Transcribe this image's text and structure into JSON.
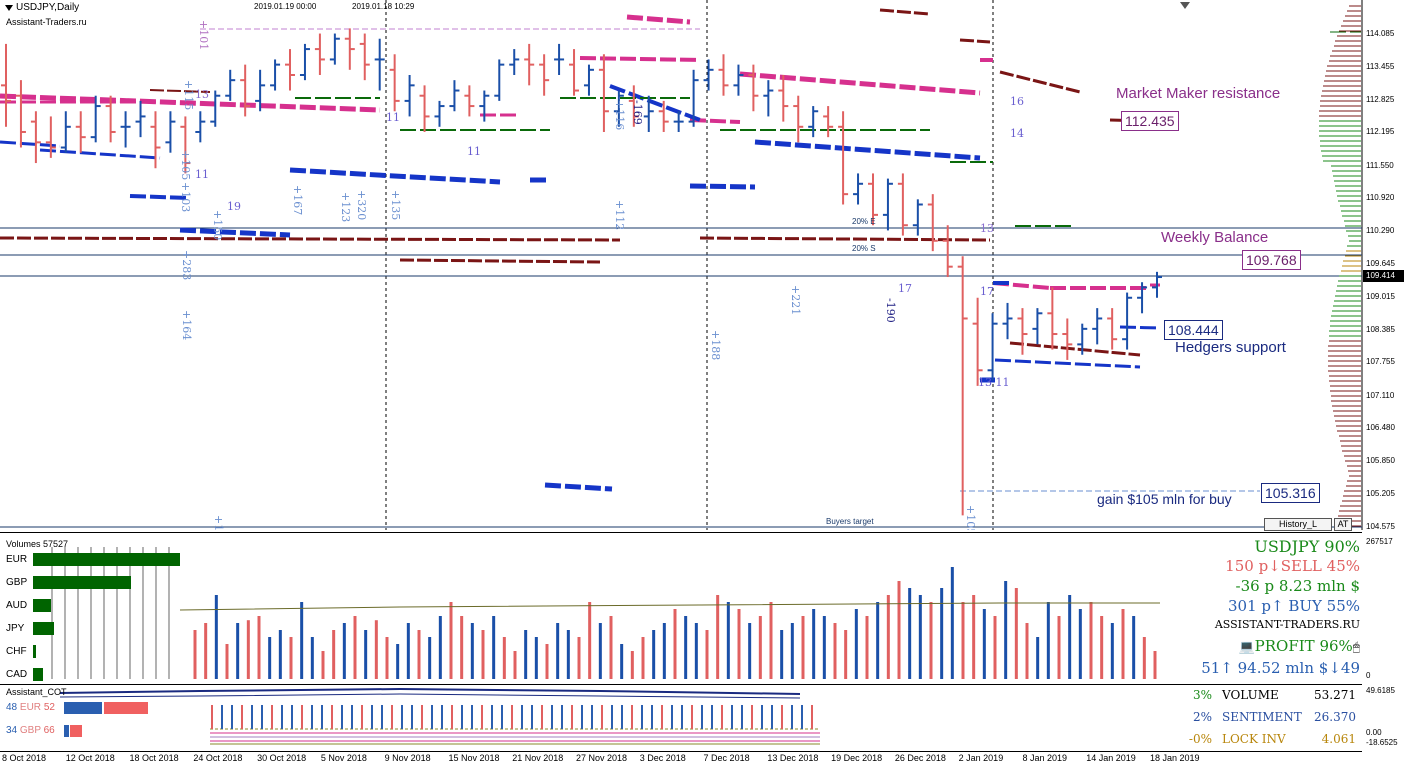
{
  "chart": {
    "symbol_title": "USDJPY,Daily",
    "site": "Assistant-Traders.ru",
    "timestamps": [
      "2019.01.19 00:00",
      "2019.01.18 10:29"
    ],
    "market_maker_label": "Market Maker resistance",
    "market_maker_price": "112.435",
    "weekly_balance_label": "Weekly Balance",
    "weekly_balance_price": "109.768",
    "current_price": "109.414",
    "hedgers_price": "108.444",
    "hedgers_label": "Hedgers support",
    "gain_label": "gain $105 mln for buy",
    "gain_price": "105.316",
    "buyers_target": "Buyers target",
    "pct_e": "20% E",
    "pct_s": "20% S",
    "history_button": "History_L",
    "at_button": "AT",
    "annotations": [
      {
        "text": "+101",
        "color": "#b070c0"
      },
      {
        "text": "+115",
        "color": "#6a8fd0"
      },
      {
        "text": "13",
        "color": "#8a6fd0"
      },
      {
        "text": "+105",
        "color": "#6a8fd0"
      },
      {
        "text": "+103",
        "color": "#6a8fd0"
      },
      {
        "text": "11",
        "color": "#6a5fd0"
      },
      {
        "text": "19",
        "color": "#6a5fd0"
      },
      {
        "text": "+150",
        "color": "#6a8fd0"
      },
      {
        "text": "+283",
        "color": "#6a8fd0"
      },
      {
        "text": "+164",
        "color": "#6a8fd0"
      },
      {
        "text": "+18",
        "color": "#6a8fd0"
      },
      {
        "text": "+167",
        "color": "#6a8fd0"
      },
      {
        "text": "+123",
        "color": "#6a8fd0"
      },
      {
        "text": "+320",
        "color": "#6a8fd0"
      },
      {
        "text": "11",
        "color": "#6a5fd0"
      },
      {
        "text": "+135",
        "color": "#6a8fd0"
      },
      {
        "text": "11",
        "color": "#6a5fd0"
      },
      {
        "text": "+116",
        "color": "#6a8fd0"
      },
      {
        "text": "-169",
        "color": "#1a1a80"
      },
      {
        "text": "+112",
        "color": "#6a8fd0"
      },
      {
        "text": "+188",
        "color": "#6a8fd0"
      },
      {
        "text": "+221",
        "color": "#6a8fd0"
      },
      {
        "text": "-190",
        "color": "#1a1a80"
      },
      {
        "text": "17",
        "color": "#6a5fd0"
      },
      {
        "text": "13",
        "color": "#8a6fd0"
      },
      {
        "text": "17",
        "color": "#6a5fd0"
      },
      {
        "text": "13 11",
        "color": "#6a5fd0"
      },
      {
        "text": "+105",
        "color": "#6a8fd0"
      },
      {
        "text": "16",
        "color": "#6a5fd0"
      },
      {
        "text": "14",
        "color": "#6a5fd0"
      }
    ],
    "price_axis": [
      "114.085",
      "113.455",
      "112.825",
      "112.195",
      "111.550",
      "110.920",
      "110.290",
      "109.645",
      "109.015",
      "108.385",
      "107.755",
      "107.110",
      "106.480",
      "105.850",
      "105.205",
      "104.575"
    ]
  },
  "chart_data": {
    "type": "candlestick",
    "symbol": "USDJPY",
    "timeframe": "Daily",
    "dates": [
      "8 Oct 2018",
      "12 Oct 2018",
      "18 Oct 2018",
      "24 Oct 2018",
      "30 Oct 2018",
      "5 Nov 2018",
      "9 Nov 2018",
      "15 Nov 2018",
      "21 Nov 2018",
      "27 Nov 2018",
      "3 Dec 2018",
      "7 Dec 2018",
      "13 Dec 2018",
      "19 Dec 2018",
      "26 Dec 2018",
      "2 Jan 2019",
      "8 Jan 2019",
      "14 Jan 2019",
      "18 Jan 2019"
    ],
    "ylim": [
      104.575,
      114.4
    ],
    "levels": {
      "market_maker_resistance": 112.435,
      "weekly_balance": 109.768,
      "current": 109.414,
      "hedgers_support": 108.444,
      "gain_level": 105.316
    },
    "candles": [
      {
        "o": 113.1,
        "h": 113.9,
        "c": 112.8,
        "l": 112.3
      },
      {
        "o": 112.9,
        "h": 113.2,
        "c": 112.2,
        "l": 111.9
      },
      {
        "o": 112.4,
        "h": 112.6,
        "c": 112.0,
        "l": 111.6
      },
      {
        "o": 112.0,
        "h": 112.5,
        "c": 111.9,
        "l": 111.7
      },
      {
        "o": 111.9,
        "h": 112.6,
        "c": 112.3,
        "l": 111.8
      },
      {
        "o": 112.3,
        "h": 112.6,
        "c": 112.1,
        "l": 111.8
      },
      {
        "o": 112.1,
        "h": 112.9,
        "c": 112.7,
        "l": 112.0
      },
      {
        "o": 112.7,
        "h": 112.9,
        "c": 112.2,
        "l": 112.0
      },
      {
        "o": 112.3,
        "h": 112.6,
        "c": 112.3,
        "l": 111.9
      },
      {
        "o": 112.4,
        "h": 112.8,
        "c": 112.5,
        "l": 112.1
      },
      {
        "o": 112.3,
        "h": 112.6,
        "c": 111.9,
        "l": 111.5
      },
      {
        "o": 112.0,
        "h": 112.6,
        "c": 112.4,
        "l": 111.8
      },
      {
        "o": 112.3,
        "h": 112.5,
        "c": 111.6,
        "l": 111.4
      },
      {
        "o": 112.2,
        "h": 112.6,
        "c": 112.4,
        "l": 112.0
      },
      {
        "o": 112.4,
        "h": 113.0,
        "c": 112.9,
        "l": 112.3
      },
      {
        "o": 112.9,
        "h": 113.4,
        "c": 113.2,
        "l": 112.8
      },
      {
        "o": 113.2,
        "h": 113.5,
        "c": 112.7,
        "l": 112.5
      },
      {
        "o": 112.8,
        "h": 113.4,
        "c": 113.1,
        "l": 112.6
      },
      {
        "o": 113.1,
        "h": 113.6,
        "c": 113.5,
        "l": 113.0
      },
      {
        "o": 113.5,
        "h": 113.8,
        "c": 113.3,
        "l": 113.0
      },
      {
        "o": 113.3,
        "h": 113.9,
        "c": 113.8,
        "l": 113.2
      },
      {
        "o": 113.8,
        "h": 114.1,
        "c": 113.6,
        "l": 113.3
      },
      {
        "o": 113.6,
        "h": 114.1,
        "c": 114.0,
        "l": 113.5
      },
      {
        "o": 114.0,
        "h": 114.2,
        "c": 113.8,
        "l": 113.4
      },
      {
        "o": 113.9,
        "h": 114.1,
        "c": 113.5,
        "l": 113.2
      },
      {
        "o": 113.6,
        "h": 114.0,
        "c": 113.6,
        "l": 113.0
      },
      {
        "o": 113.4,
        "h": 113.7,
        "c": 112.8,
        "l": 112.6
      },
      {
        "o": 112.8,
        "h": 113.3,
        "c": 113.1,
        "l": 112.5
      },
      {
        "o": 112.9,
        "h": 113.1,
        "c": 112.5,
        "l": 112.2
      },
      {
        "o": 112.5,
        "h": 112.8,
        "c": 112.7,
        "l": 112.3
      },
      {
        "o": 112.7,
        "h": 113.2,
        "c": 113.0,
        "l": 112.6
      },
      {
        "o": 112.9,
        "h": 113.1,
        "c": 112.7,
        "l": 112.5
      },
      {
        "o": 112.7,
        "h": 113.0,
        "c": 112.9,
        "l": 112.4
      },
      {
        "o": 112.9,
        "h": 113.6,
        "c": 113.5,
        "l": 112.8
      },
      {
        "o": 113.5,
        "h": 113.8,
        "c": 113.6,
        "l": 113.3
      },
      {
        "o": 113.6,
        "h": 113.9,
        "c": 113.5,
        "l": 113.1
      },
      {
        "o": 113.5,
        "h": 113.7,
        "c": 113.2,
        "l": 112.9
      },
      {
        "o": 113.6,
        "h": 113.9,
        "c": 113.6,
        "l": 113.3
      },
      {
        "o": 113.5,
        "h": 113.8,
        "c": 113.0,
        "l": 112.9
      },
      {
        "o": 113.1,
        "h": 113.5,
        "c": 113.4,
        "l": 112.9
      },
      {
        "o": 113.4,
        "h": 113.7,
        "c": 112.6,
        "l": 112.2
      },
      {
        "o": 112.6,
        "h": 113.0,
        "c": 112.9,
        "l": 112.3
      },
      {
        "o": 112.8,
        "h": 113.1,
        "c": 112.5,
        "l": 112.3
      },
      {
        "o": 112.5,
        "h": 112.9,
        "c": 112.6,
        "l": 112.2
      },
      {
        "o": 112.6,
        "h": 112.8,
        "c": 112.4,
        "l": 112.2
      },
      {
        "o": 112.4,
        "h": 112.6,
        "c": 112.4,
        "l": 112.2
      },
      {
        "o": 112.4,
        "h": 113.4,
        "c": 113.2,
        "l": 112.3
      },
      {
        "o": 113.2,
        "h": 113.6,
        "c": 113.4,
        "l": 113.0
      },
      {
        "o": 113.4,
        "h": 113.7,
        "c": 113.1,
        "l": 112.9
      },
      {
        "o": 113.1,
        "h": 113.5,
        "c": 113.3,
        "l": 112.9
      },
      {
        "o": 113.3,
        "h": 113.5,
        "c": 112.9,
        "l": 112.6
      },
      {
        "o": 112.9,
        "h": 113.2,
        "c": 113.0,
        "l": 112.5
      },
      {
        "o": 113.0,
        "h": 113.3,
        "c": 112.7,
        "l": 112.4
      },
      {
        "o": 112.7,
        "h": 112.9,
        "c": 112.3,
        "l": 112.0
      },
      {
        "o": 112.3,
        "h": 112.7,
        "c": 112.6,
        "l": 112.1
      },
      {
        "o": 112.5,
        "h": 112.7,
        "c": 112.3,
        "l": 112.1
      },
      {
        "o": 112.3,
        "h": 112.6,
        "c": 111.0,
        "l": 110.8
      },
      {
        "o": 111.0,
        "h": 111.4,
        "c": 111.2,
        "l": 110.8
      },
      {
        "o": 111.2,
        "h": 111.4,
        "c": 110.6,
        "l": 110.4
      },
      {
        "o": 110.6,
        "h": 111.3,
        "c": 111.2,
        "l": 110.3
      },
      {
        "o": 111.2,
        "h": 111.4,
        "c": 110.4,
        "l": 110.2
      },
      {
        "o": 110.4,
        "h": 110.9,
        "c": 110.8,
        "l": 110.2
      },
      {
        "o": 110.8,
        "h": 111.0,
        "c": 110.1,
        "l": 109.9
      },
      {
        "o": 110.1,
        "h": 110.4,
        "c": 109.6,
        "l": 109.4
      },
      {
        "o": 109.6,
        "h": 109.8,
        "c": 108.6,
        "l": 104.8
      },
      {
        "o": 108.5,
        "h": 109.0,
        "c": 107.6,
        "l": 107.3
      },
      {
        "o": 107.6,
        "h": 108.7,
        "c": 108.5,
        "l": 107.4
      },
      {
        "o": 108.5,
        "h": 108.9,
        "c": 108.6,
        "l": 108.2
      },
      {
        "o": 108.6,
        "h": 108.8,
        "c": 108.3,
        "l": 107.9
      },
      {
        "o": 108.4,
        "h": 108.8,
        "c": 108.7,
        "l": 108.1
      },
      {
        "o": 108.7,
        "h": 109.2,
        "c": 108.3,
        "l": 108.0
      },
      {
        "o": 108.3,
        "h": 108.6,
        "c": 108.1,
        "l": 107.8
      },
      {
        "o": 108.1,
        "h": 108.5,
        "c": 108.4,
        "l": 107.9
      },
      {
        "o": 108.4,
        "h": 108.8,
        "c": 108.6,
        "l": 108.1
      },
      {
        "o": 108.6,
        "h": 108.8,
        "c": 108.2,
        "l": 108.0
      },
      {
        "o": 108.2,
        "h": 109.1,
        "c": 109.0,
        "l": 108.0
      },
      {
        "o": 109.0,
        "h": 109.3,
        "c": 109.2,
        "l": 108.7
      },
      {
        "o": 109.2,
        "h": 109.5,
        "c": 109.4,
        "l": 109.0
      }
    ]
  },
  "volumes": {
    "title": "Volumes 57527",
    "axis_max": "267517",
    "axis_zero": "0",
    "currencies": [
      {
        "name": "EUR",
        "bar": 1.0
      },
      {
        "name": "GBP",
        "bar": 0.67
      },
      {
        "name": "AUD",
        "bar": 0.12
      },
      {
        "name": "JPY",
        "bar": 0.14
      },
      {
        "name": "CHF",
        "bar": 0.01
      },
      {
        "name": "CAD",
        "bar": 0.07
      }
    ],
    "bars": [
      0.35,
      0.4,
      0.6,
      0.25,
      0.4,
      0.42,
      0.45,
      0.3,
      0.35,
      0.3,
      0.55,
      0.3,
      0.2,
      0.35,
      0.4,
      0.45,
      0.35,
      0.42,
      0.3,
      0.25,
      0.4,
      0.35,
      0.3,
      0.45,
      0.55,
      0.45,
      0.4,
      0.35,
      0.45,
      0.3,
      0.2,
      0.35,
      0.3,
      0.25,
      0.4,
      0.35,
      0.3,
      0.55,
      0.4,
      0.45,
      0.25,
      0.2,
      0.3,
      0.35,
      0.4,
      0.5,
      0.45,
      0.4,
      0.35,
      0.6,
      0.55,
      0.5,
      0.4,
      0.45,
      0.55,
      0.35,
      0.4,
      0.45,
      0.5,
      0.45,
      0.4,
      0.35,
      0.5,
      0.45,
      0.55,
      0.6,
      0.7,
      0.65,
      0.6,
      0.55,
      0.65,
      0.8,
      0.55,
      0.6,
      0.5,
      0.45,
      0.7,
      0.65,
      0.4,
      0.3,
      0.55,
      0.45,
      0.6,
      0.5,
      0.55,
      0.45,
      0.4,
      0.5,
      0.45,
      0.3,
      0.2
    ],
    "stats": {
      "pair": "USDJPY 90%",
      "sell": "150 p↓SELL 45%",
      "loss": "-36 p   8.23 mln $",
      "buy": "301 p↑ BUY 55%",
      "site": "ASSISTANT-TRADERS.RU",
      "profit_icon": "💻",
      "profit": "PROFIT 96%",
      "mouse_icon": "🖱",
      "bottom": "51↑ 94.52 mln $↓49"
    }
  },
  "cot": {
    "title": "Assistant_COT",
    "eur_left": "48",
    "eur_name": "EUR",
    "eur_right": "52",
    "gbp_left": "34",
    "gbp_name": "GBP",
    "gbp_right": "66",
    "axis_top": "49.6185",
    "axis_mid": "0.00",
    "axis_bottom": "-18.6525",
    "stats": [
      {
        "pct": "3%",
        "label": "VOLUME",
        "value": "53.271",
        "color": "#1a8a1a"
      },
      {
        "pct": "2%",
        "label": "SENTIMENT",
        "value": "26.370",
        "color": "#2a4fa0"
      },
      {
        "pct": "-0%",
        "label": "LOCK INV",
        "value": "4.061",
        "color": "#b8860b"
      }
    ]
  },
  "colors": {
    "bull": "#1a4fa8",
    "bear": "#e06060",
    "mm_resistance": "#d6308e",
    "hedgers": "#1535c8",
    "weekly": "#7a1515",
    "green_level": "#0a6a0a"
  }
}
